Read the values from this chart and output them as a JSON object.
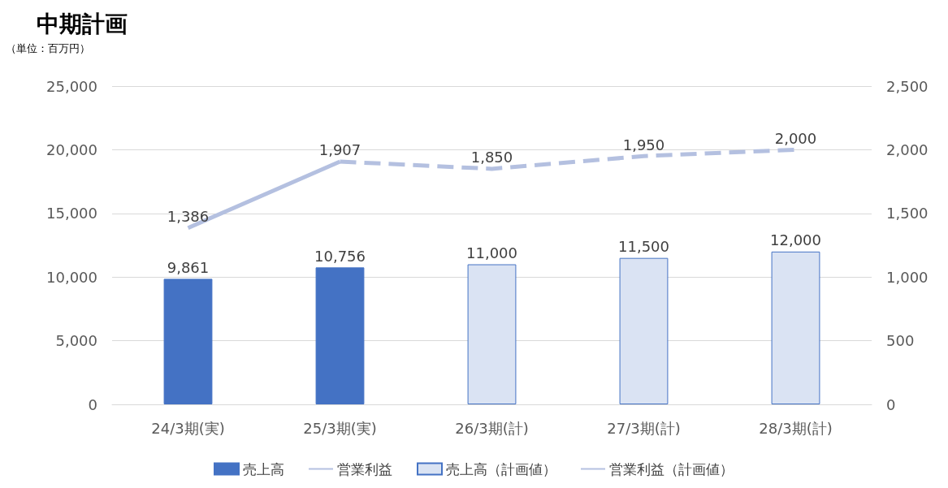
{
  "chart_data": {
    "type": "bar",
    "title": "中期計画",
    "subtitle": "（単位：百万円）",
    "categories": [
      "24/3期(実)",
      "25/3期(実)",
      "26/3期(計)",
      "27/3期(計)",
      "28/3期(計)"
    ],
    "series": [
      {
        "name": "売上高",
        "color": "#4472c4",
        "values": [
          9861,
          10756,
          null,
          null,
          null
        ],
        "value_labels": [
          "9,861",
          "10,756",
          null,
          null,
          null
        ]
      },
      {
        "name": "営業利益",
        "type": "line",
        "axis": "y2",
        "color": "#b4c0e0",
        "line_style": "solid",
        "values": [
          1386,
          1907,
          null,
          null,
          null
        ],
        "value_labels": [
          "1,386",
          "1,907",
          null,
          null,
          null
        ]
      },
      {
        "name": "売上高（計画値）",
        "color": "#dae3f3",
        "values": [
          null,
          null,
          11000,
          11500,
          12000
        ],
        "value_labels": [
          null,
          null,
          "11,000",
          "11,500",
          "12,000"
        ]
      },
      {
        "name": "営業利益（計画値）",
        "type": "line",
        "axis": "y2",
        "color": "#b4c0e0",
        "line_style": "dashed",
        "values": [
          null,
          1907,
          1850,
          1950,
          2000
        ],
        "value_labels": [
          null,
          null,
          "1,850",
          "1,950",
          "2,000"
        ]
      }
    ],
    "stacked": true,
    "marker": "none",
    "ylim": [
      0,
      25000
    ],
    "yticks": [
      0,
      {
        "value": 5000,
        "label": "5,000"
      },
      {
        "value": 10000,
        "label": "10,000"
      },
      {
        "value": 15000,
        "label": "15,000"
      },
      {
        "value": 20000,
        "label": "20,000"
      },
      {
        "value": 25000,
        "label": "25,000"
      }
    ],
    "y2lim": [
      0,
      2500
    ],
    "y2ticks": [
      0,
      500,
      {
        "value": 1000,
        "label": "1,000"
      },
      {
        "value": 1500,
        "label": "1,500"
      },
      {
        "value": 2000,
        "label": "2,000"
      },
      {
        "value": 2500,
        "label": "2,500"
      }
    ],
    "grid": "y",
    "legend": "bottom"
  }
}
